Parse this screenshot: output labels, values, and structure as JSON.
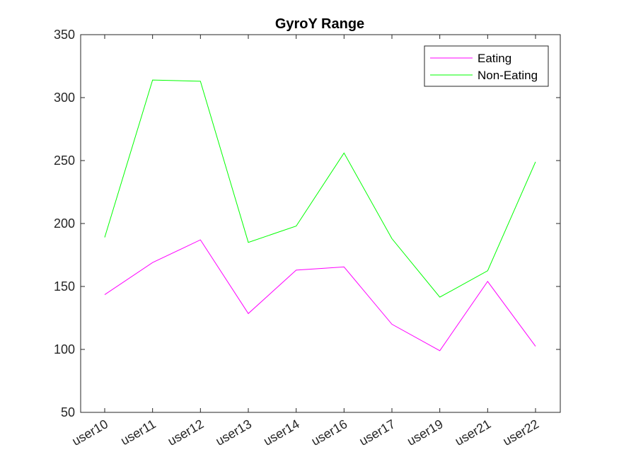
{
  "chart_data": {
    "type": "line",
    "title": "GyroY Range",
    "xlabel": "",
    "ylabel": "",
    "categories": [
      "user10",
      "user11",
      "user12",
      "user13",
      "user14",
      "user16",
      "user17",
      "user19",
      "user21",
      "user22"
    ],
    "ylim": [
      50,
      350
    ],
    "yticks": [
      50,
      100,
      150,
      200,
      250,
      300,
      350
    ],
    "grid": false,
    "legend_position": "top-right",
    "series": [
      {
        "name": "Eating",
        "color": "#ff00ff",
        "values": [
          143.5,
          169,
          187,
          128.5,
          163,
          165.5,
          120,
          99,
          154,
          102.5
        ]
      },
      {
        "name": "Non-Eating",
        "color": "#00ff00",
        "values": [
          189,
          314,
          313,
          185,
          198,
          256,
          188,
          141.5,
          162.5,
          249
        ]
      }
    ]
  }
}
